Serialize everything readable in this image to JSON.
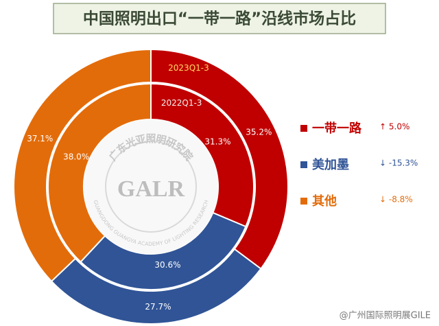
{
  "chart_data": {
    "type": "donut",
    "title": "中国照明出口“一带一路”沿线市场占比",
    "categories": [
      "一带一路",
      "美加墨",
      "其他"
    ],
    "colors": [
      "#c00000",
      "#305496",
      "#e36c0a"
    ],
    "series": [
      {
        "name": "2023Q1-3",
        "values": [
          35.2,
          27.7,
          37.1
        ],
        "value_labels": [
          "35.2%",
          "27.7%",
          "37.1%"
        ]
      },
      {
        "name": "2022Q1-3",
        "values": [
          31.3,
          30.6,
          38.0
        ],
        "value_labels": [
          "31.3%",
          "30.6%",
          "38.0%"
        ]
      }
    ],
    "legend_changes": [
      "↑ 5.0%",
      "↓ -15.3%",
      "↓ -8.8%"
    ],
    "watermark": {
      "cn": "广东光亚照明研究院",
      "logo": "GALR",
      "en": "GUANGDONG GUANGYA ACADEMY OF LIGHTING RESEARCH"
    },
    "footer": "@广州国际照明展GILE"
  }
}
